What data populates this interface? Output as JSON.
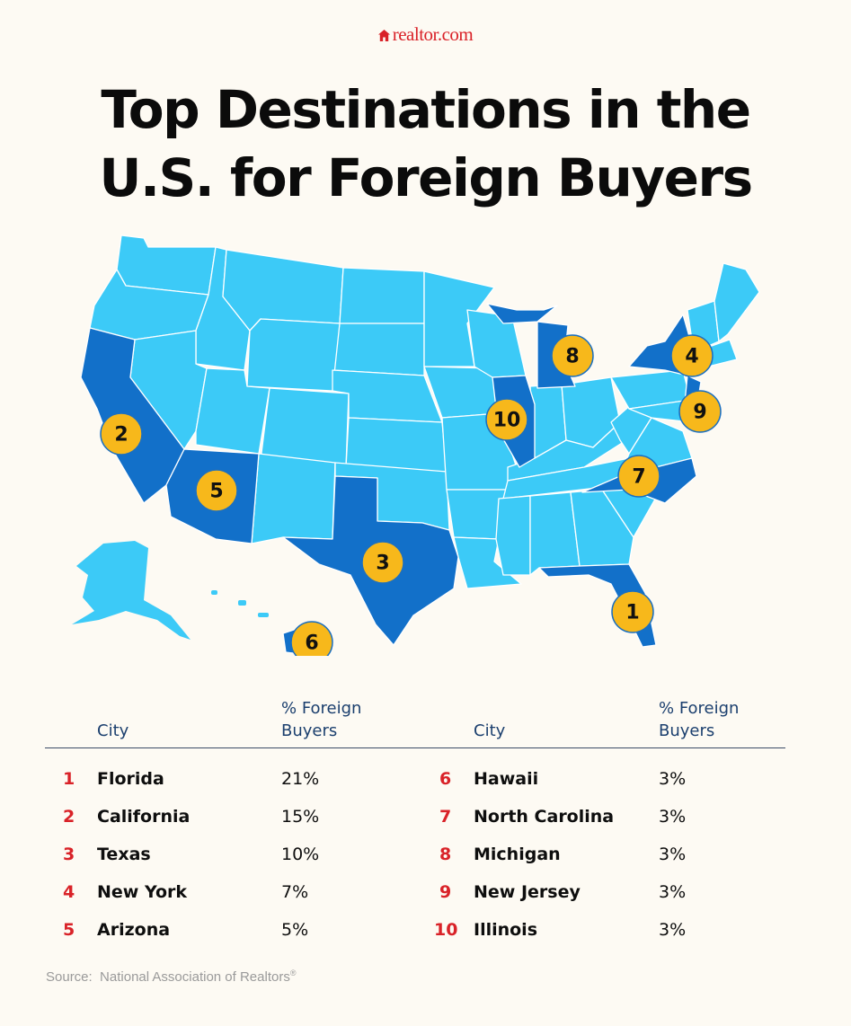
{
  "brand": {
    "logo_text": "realtor.com",
    "color": "#d92228"
  },
  "title": {
    "line1": "Top Destinations in the",
    "line2": "U.S. for Foreign Buyers"
  },
  "colors": {
    "state": "#3ccaf7",
    "highlighted_state": "#1270c9",
    "marker": "#f7b81b",
    "rank": "#d92228"
  },
  "map": {
    "markers": [
      {
        "rank": "1",
        "state": "Florida"
      },
      {
        "rank": "2",
        "state": "California"
      },
      {
        "rank": "3",
        "state": "Texas"
      },
      {
        "rank": "4",
        "state": "New York"
      },
      {
        "rank": "5",
        "state": "Arizona"
      },
      {
        "rank": "6",
        "state": "Hawaii"
      },
      {
        "rank": "7",
        "state": "North Carolina"
      },
      {
        "rank": "8",
        "state": "Michigan"
      },
      {
        "rank": "9",
        "state": "New Jersey"
      },
      {
        "rank": "10",
        "state": "Illinois"
      }
    ]
  },
  "table": {
    "headers": {
      "city": "City",
      "pct_line1": "% Foreign",
      "pct_line2": "Buyers"
    },
    "rows": [
      {
        "rank": "1",
        "city": "Florida",
        "pct": "21%"
      },
      {
        "rank": "2",
        "city": "California",
        "pct": "15%"
      },
      {
        "rank": "3",
        "city": "Texas",
        "pct": "10%"
      },
      {
        "rank": "4",
        "city": "New York",
        "pct": "7%"
      },
      {
        "rank": "5",
        "city": "Arizona",
        "pct": "5%"
      },
      {
        "rank": "6",
        "city": "Hawaii",
        "pct": "3%"
      },
      {
        "rank": "7",
        "city": "North Carolina",
        "pct": "3%"
      },
      {
        "rank": "8",
        "city": "Michigan",
        "pct": "3%"
      },
      {
        "rank": "9",
        "city": "New Jersey",
        "pct": "3%"
      },
      {
        "rank": "10",
        "city": "Illinois",
        "pct": "3%"
      }
    ]
  },
  "source": {
    "label": "Source:",
    "text": "National Association of Realtors",
    "mark": "®"
  }
}
